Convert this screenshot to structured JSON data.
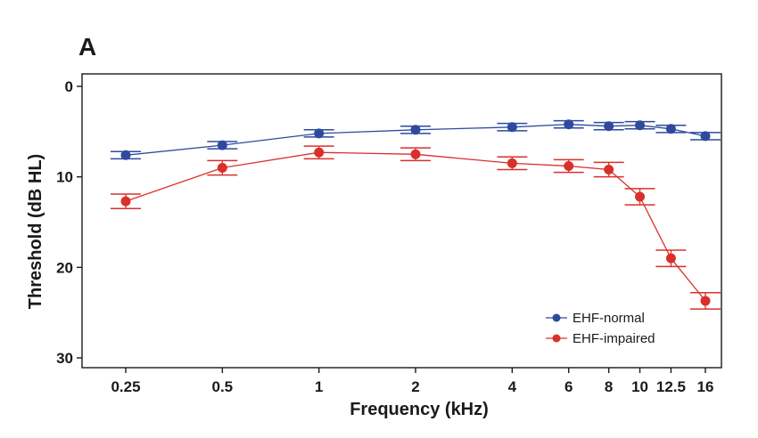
{
  "chart_data": {
    "type": "line",
    "panel_label": "A",
    "xlabel": "Frequency (kHz)",
    "ylabel": "Threshold (dB HL)",
    "x_scale": "log",
    "y_inverted": true,
    "ylim": [
      0,
      30
    ],
    "y_ticks": [
      0,
      10,
      20,
      30
    ],
    "x_ticks": [
      0.25,
      0.5,
      1,
      2,
      4,
      6,
      8,
      10,
      12.5,
      16
    ],
    "x_tick_labels": [
      "0.25",
      "0.5",
      "1",
      "2",
      "4",
      "6",
      "8",
      "10",
      "12.5",
      "16"
    ],
    "grid": false,
    "legend_position": "bottom-right",
    "series": [
      {
        "name": "EHF-normal",
        "color": "#2e4a9e",
        "x": [
          0.25,
          0.5,
          1,
          2,
          4,
          6,
          8,
          10,
          12.5,
          16
        ],
        "y": [
          7.6,
          6.5,
          5.2,
          4.8,
          4.5,
          4.2,
          4.4,
          4.3,
          4.7,
          5.5
        ],
        "error": [
          0.4,
          0.4,
          0.4,
          0.4,
          0.4,
          0.4,
          0.4,
          0.4,
          0.4,
          0.4
        ]
      },
      {
        "name": "EHF-impaired",
        "color": "#d9302c",
        "x": [
          0.25,
          0.5,
          1,
          2,
          4,
          6,
          8,
          10,
          12.5,
          16
        ],
        "y": [
          12.7,
          9.0,
          7.3,
          7.5,
          8.5,
          8.8,
          9.2,
          12.2,
          19.0,
          23.7
        ],
        "error": [
          0.8,
          0.8,
          0.7,
          0.7,
          0.7,
          0.7,
          0.8,
          0.9,
          0.9,
          0.9
        ]
      }
    ]
  }
}
